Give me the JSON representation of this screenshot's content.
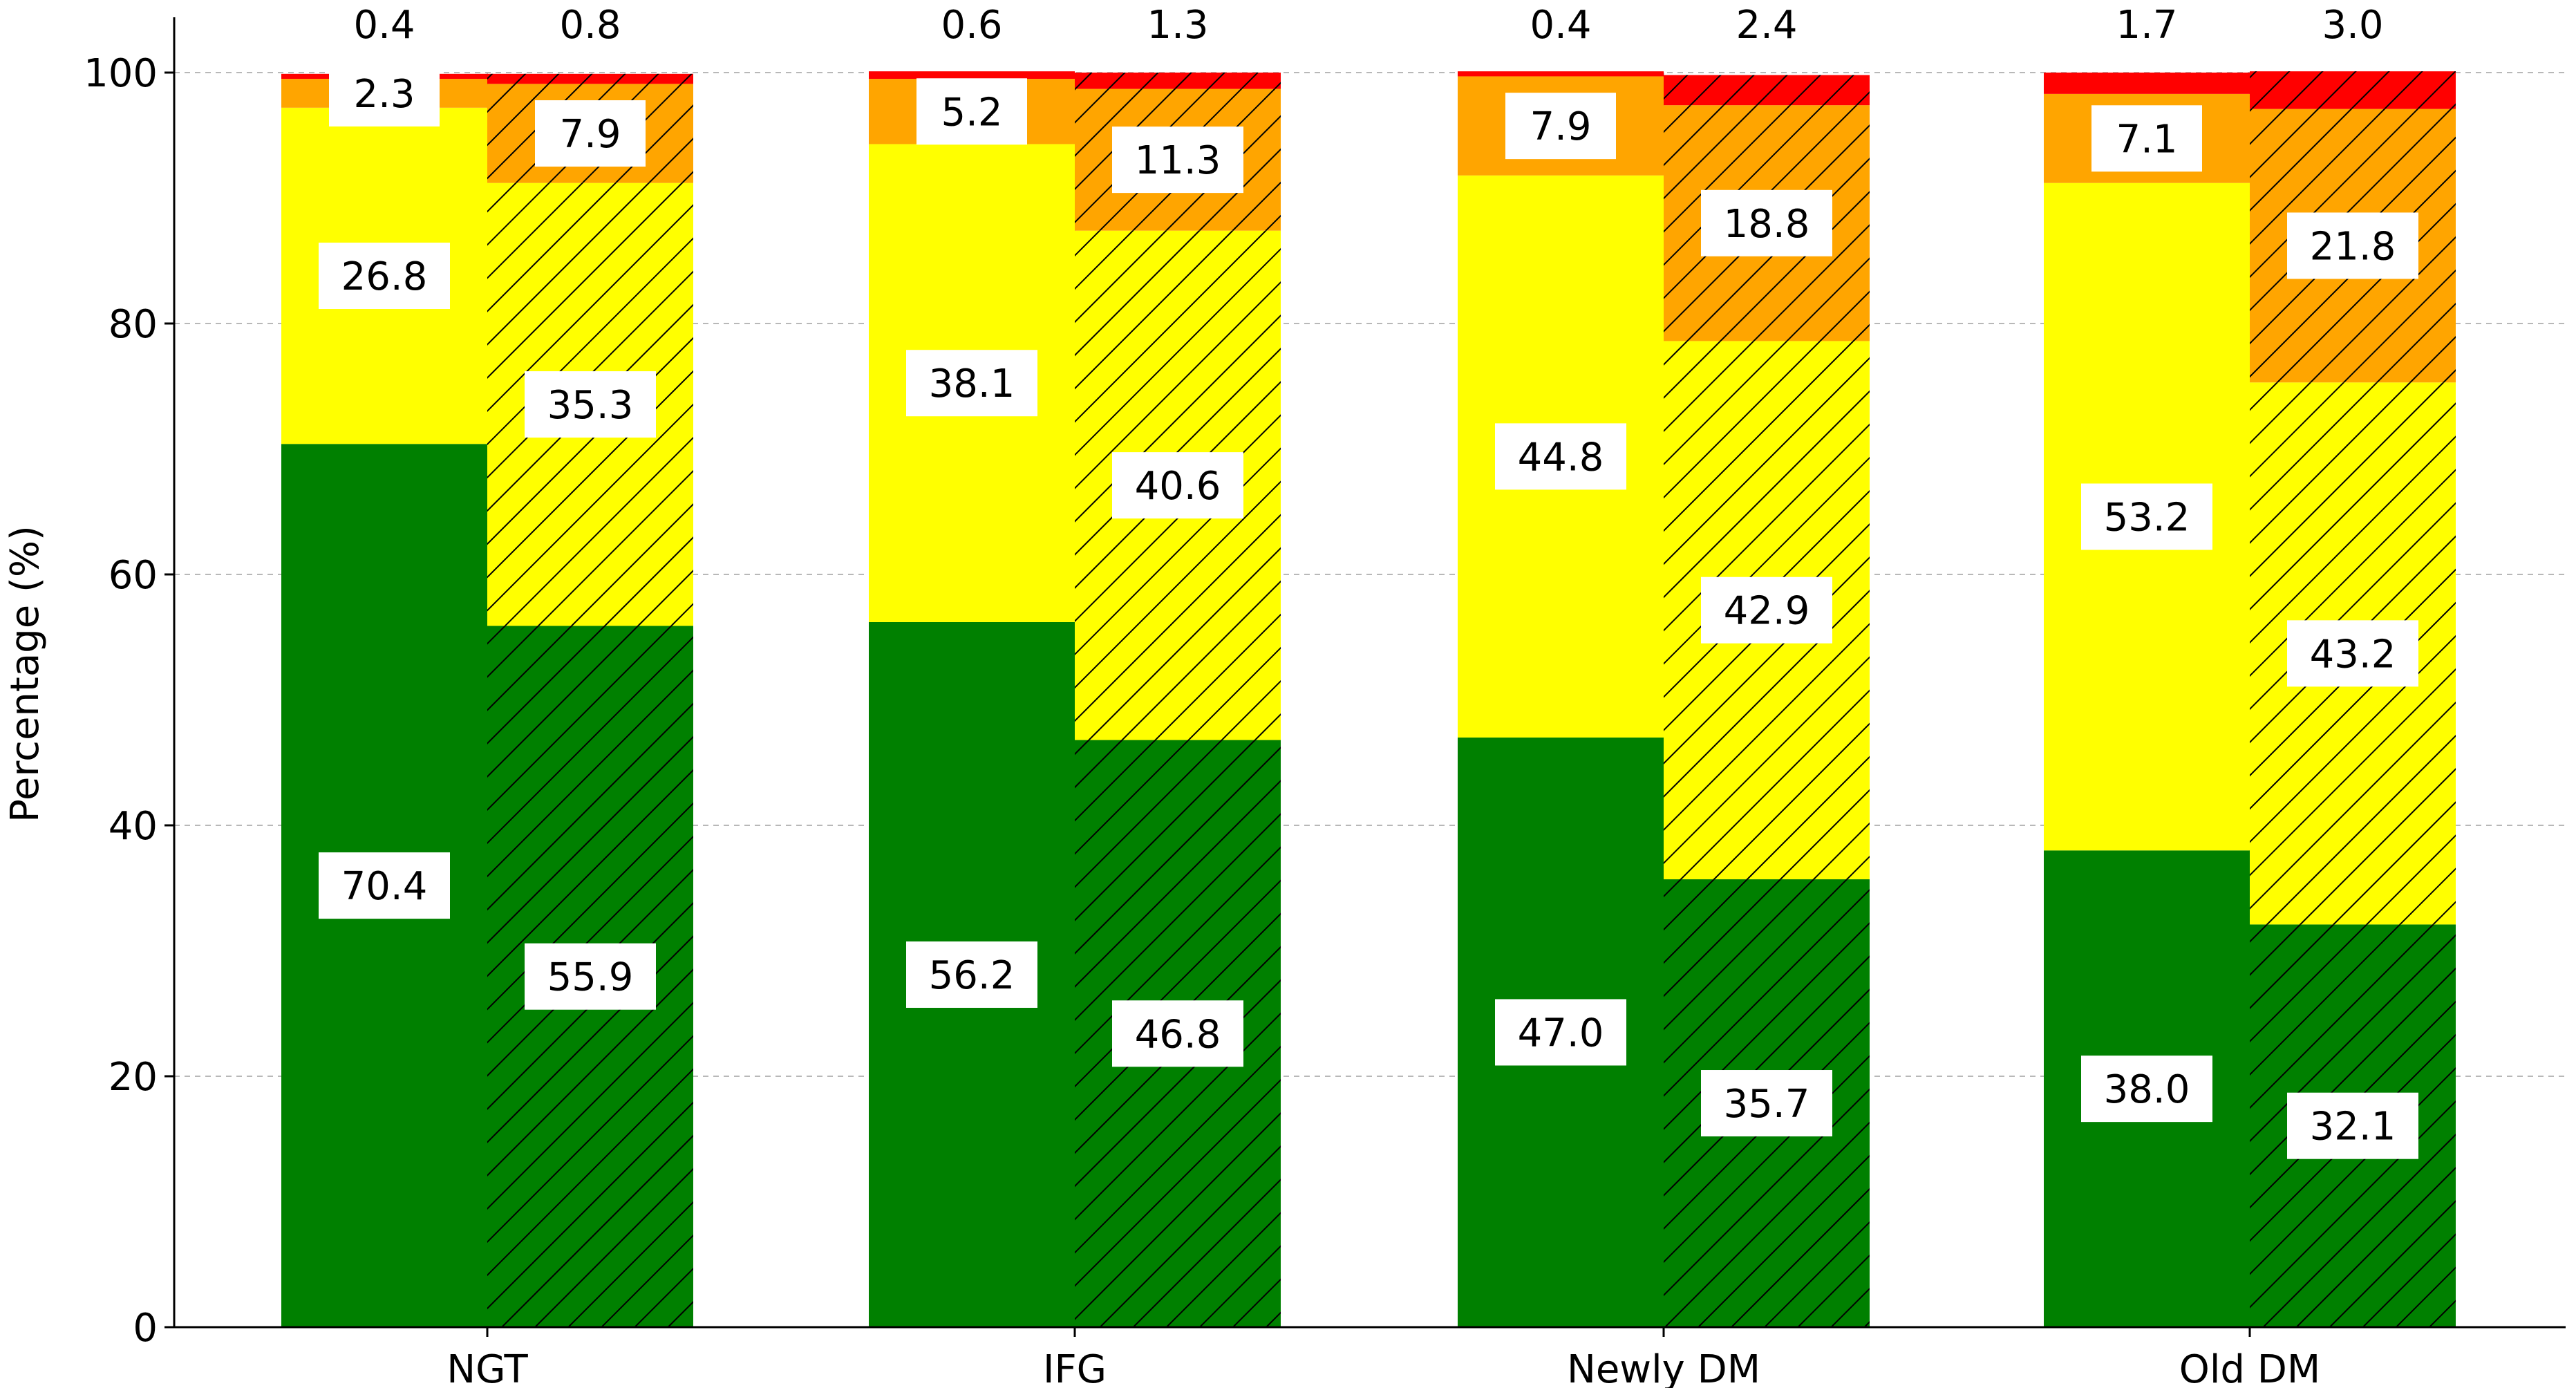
{
  "chart_data": {
    "type": "bar",
    "stacked": true,
    "grouped": true,
    "categories": [
      "NGT",
      "IFG",
      "Newly DM",
      "Old DM"
    ],
    "groups_per_category": 2,
    "stack_levels": [
      {
        "color": "#008000"
      },
      {
        "color": "#ffff00"
      },
      {
        "color": "#ffa500"
      },
      {
        "color": "#ff0000"
      }
    ],
    "bar_styles": [
      {
        "hatch": false
      },
      {
        "hatch": true
      }
    ],
    "bars": [
      {
        "category": "NGT",
        "group": 0,
        "values": [
          70.4,
          26.8,
          2.3,
          0.4
        ],
        "labels": [
          "70.4",
          "26.8",
          "2.3",
          "0.4"
        ]
      },
      {
        "category": "NGT",
        "group": 1,
        "values": [
          55.9,
          35.3,
          7.9,
          0.8
        ],
        "labels": [
          "55.9",
          "35.3",
          "7.9",
          "0.8"
        ]
      },
      {
        "category": "IFG",
        "group": 0,
        "values": [
          56.2,
          38.1,
          5.2,
          0.6
        ],
        "labels": [
          "56.2",
          "38.1",
          "5.2",
          "0.6"
        ]
      },
      {
        "category": "IFG",
        "group": 1,
        "values": [
          46.8,
          40.6,
          11.3,
          1.3
        ],
        "labels": [
          "46.8",
          "40.6",
          "11.3",
          "1.3"
        ]
      },
      {
        "category": "Newly DM",
        "group": 0,
        "values": [
          47.0,
          44.8,
          7.9,
          0.4
        ],
        "labels": [
          "47.0",
          "44.8",
          "7.9",
          "0.4"
        ]
      },
      {
        "category": "Newly DM",
        "group": 1,
        "values": [
          35.7,
          42.9,
          18.8,
          2.4
        ],
        "labels": [
          "35.7",
          "42.9",
          "18.8",
          "2.4"
        ]
      },
      {
        "category": "Old DM",
        "group": 0,
        "values": [
          38.0,
          53.2,
          7.1,
          1.7
        ],
        "labels": [
          "38.0",
          "53.2",
          "7.1",
          "1.7"
        ]
      },
      {
        "category": "Old DM",
        "group": 1,
        "values": [
          32.1,
          43.2,
          21.8,
          3.0
        ],
        "labels": [
          "32.1",
          "43.2",
          "21.8",
          "3.0"
        ]
      }
    ],
    "ylabel": "Percentage (%)",
    "xlabel": "",
    "title": "",
    "ylim": [
      0,
      100
    ],
    "yticks": [
      0,
      20,
      40,
      60,
      80,
      100
    ],
    "grid": true,
    "legend": "none"
  }
}
